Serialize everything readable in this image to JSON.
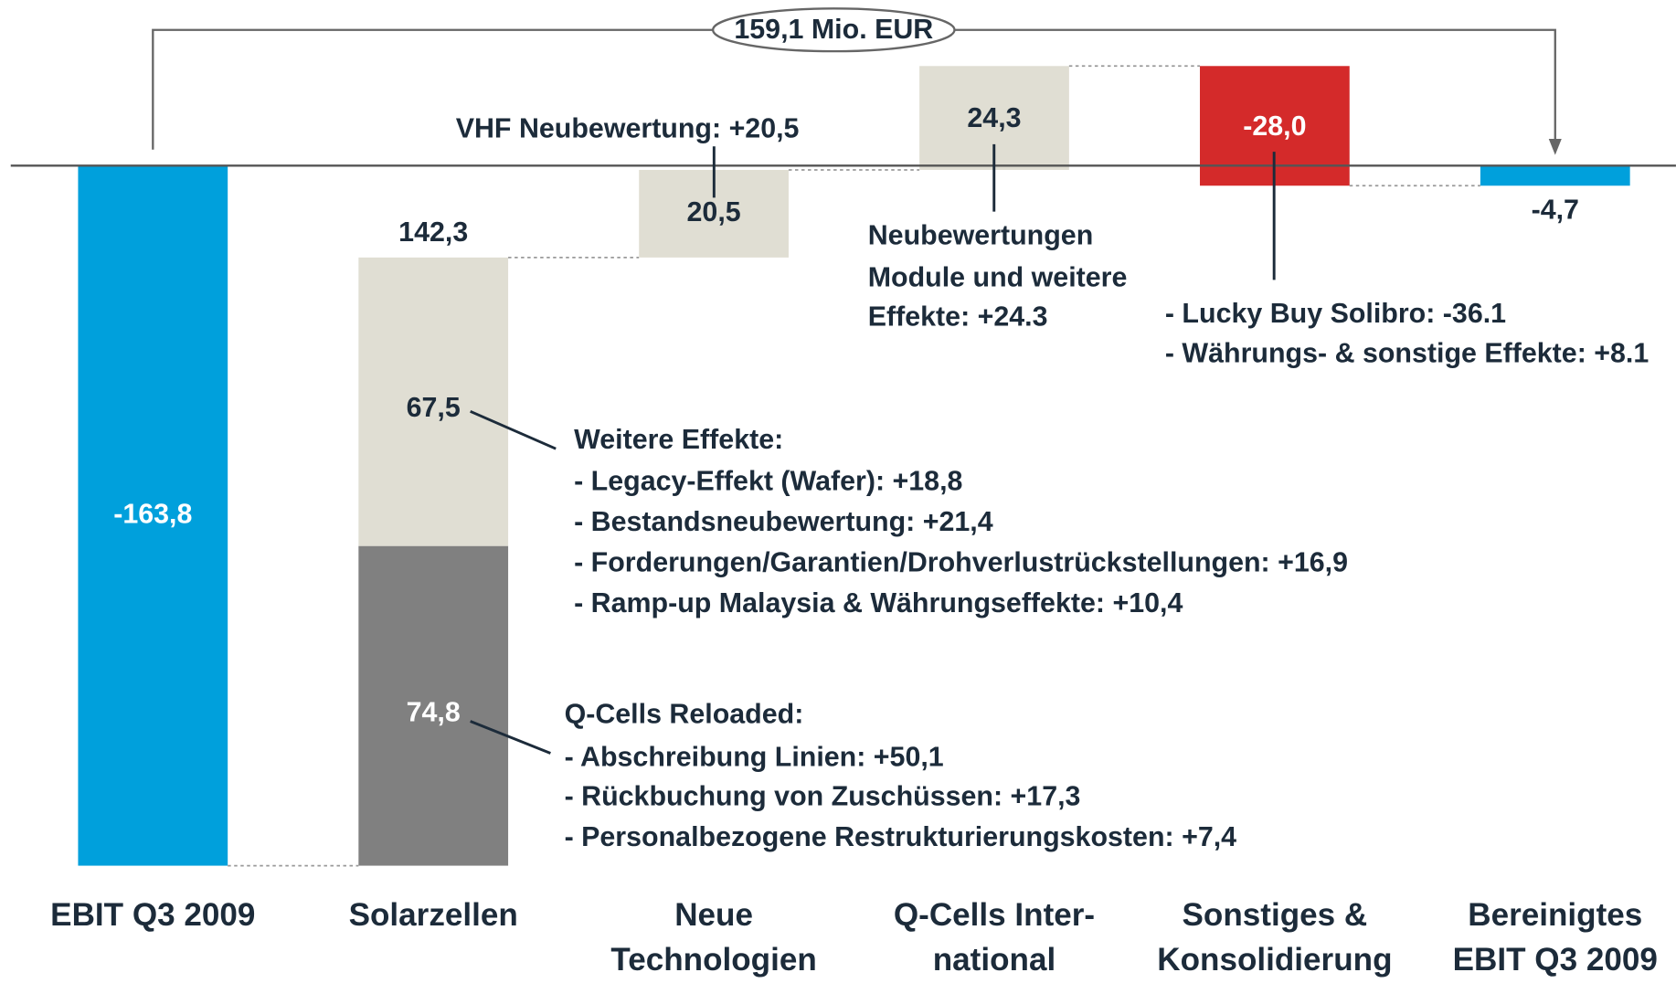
{
  "chart_data": {
    "type": "waterfall",
    "categories": [
      [
        "EBIT Q3 2009"
      ],
      [
        "Solarzellen"
      ],
      [
        "Neue",
        "Technologien"
      ],
      [
        "Q-Cells Inter-",
        "national"
      ],
      [
        "Sonstiges &",
        "Konsolidierung"
      ],
      [
        "Bereinigtes",
        "EBIT Q3 2009"
      ]
    ],
    "values": [
      -163.8,
      142.3,
      20.5,
      24.3,
      -28.0,
      -4.7
    ],
    "value_labels": [
      "-163,8",
      "142,3",
      "20,5",
      "24,3",
      "-28,0",
      "-4,7"
    ],
    "measure": [
      "absolute",
      "relative",
      "relative",
      "relative",
      "relative",
      "absolute"
    ],
    "colors": [
      "#00a0dc",
      "#e0ded3",
      "#e0ded3",
      "#e0ded3",
      "#d42a2a",
      "#00a0dc"
    ],
    "segments": {
      "bar": 1,
      "parts": [
        {
          "value": 74.8,
          "label": "74,8",
          "color": "#808080"
        },
        {
          "value": 67.5,
          "label": "67,5",
          "color": "#e0ded3"
        }
      ]
    },
    "ylim": [
      -170,
      35
    ],
    "bracket_label": "159,1 Mio. EUR",
    "annotations": [
      {
        "lines": [
          "VHF Neubewertung: +20,5"
        ]
      },
      {
        "lines": [
          "Neubewertungen",
          "Module und weitere",
          "Effekte: +24.3"
        ]
      },
      {
        "lines": [
          "- Lucky Buy Solibro: -36.1",
          "- Währungs- & sonstige Effekte: +8.1"
        ]
      },
      {
        "lines": [
          "Weitere Effekte:",
          "- Legacy-Effekt (Wafer): +18,8",
          "- Bestandsneubewertung: +21,4",
          "- Forderungen/Garantien/Drohverlustrückstellungen: +16,9",
          "- Ramp-up Malaysia & Währungseffekte: +10,4"
        ]
      },
      {
        "lines": [
          "Q-Cells Reloaded:",
          "- Abschreibung Linien: +50,1",
          "- Rückbuchung von Zuschüssen: +17,3",
          "- Personalbezogene Restrukturierungskosten: +7,4"
        ]
      }
    ]
  }
}
